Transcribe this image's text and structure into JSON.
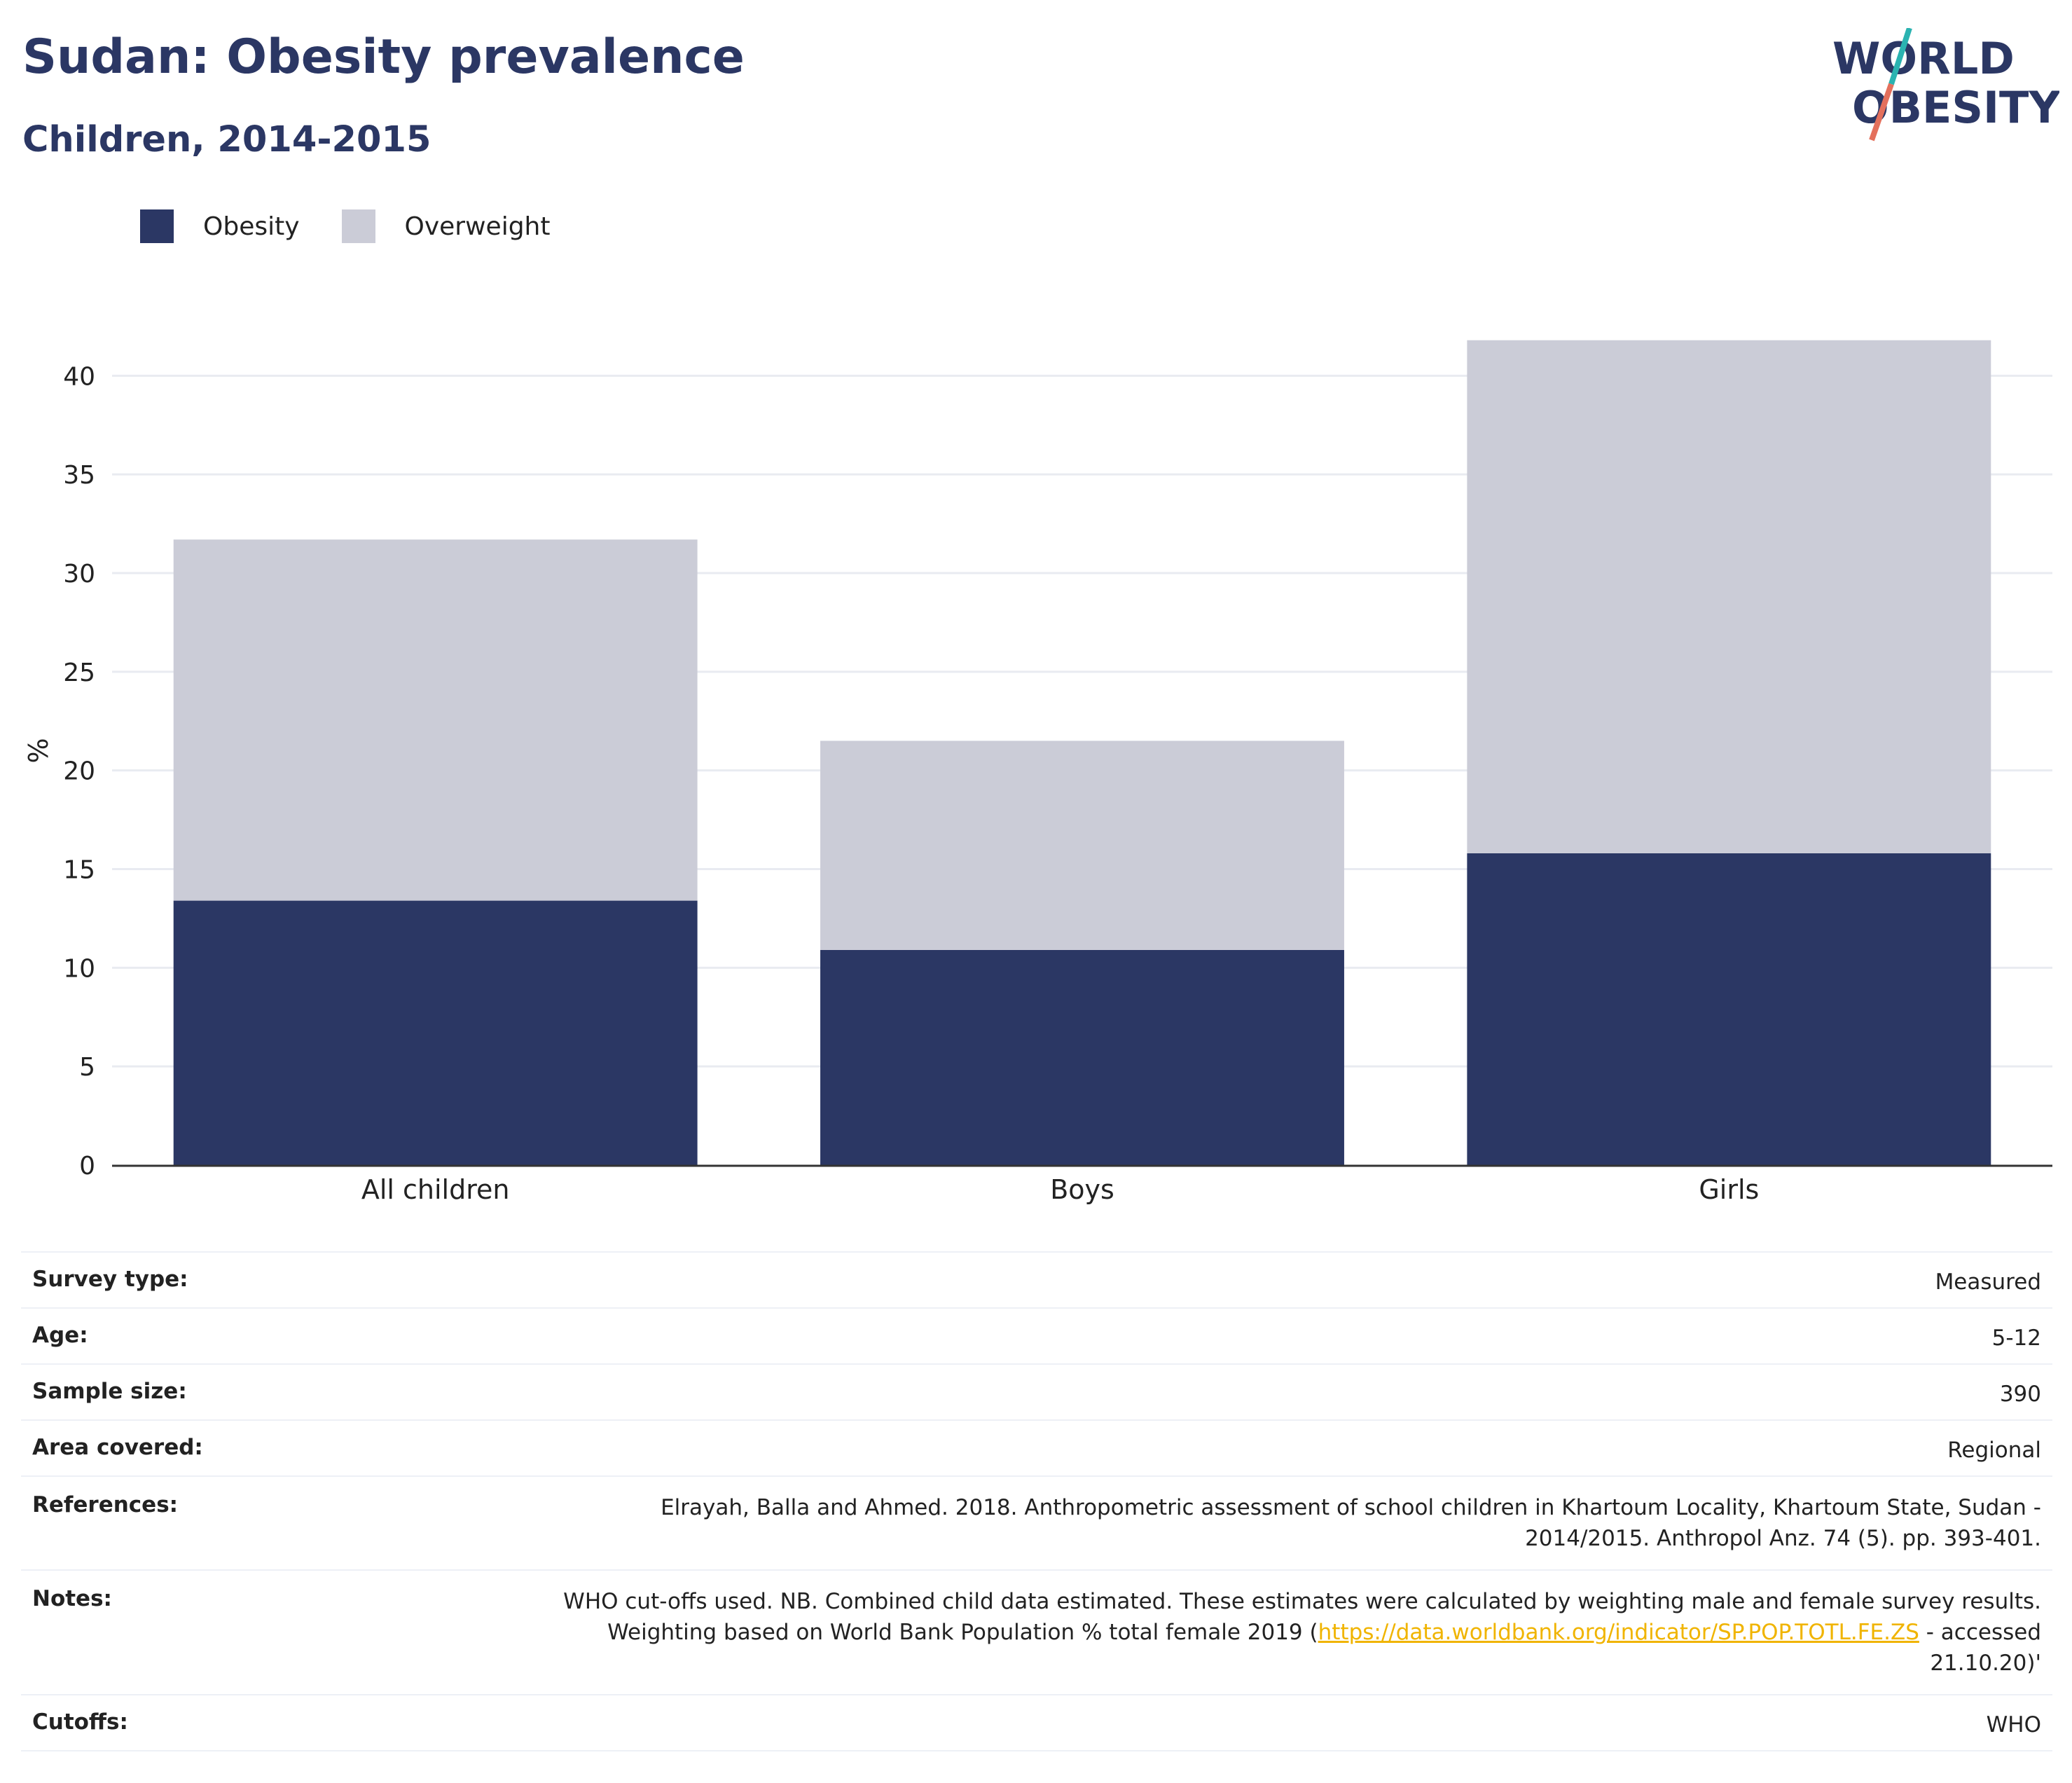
{
  "header": {
    "title": "Sudan: Obesity prevalence",
    "subtitle": "Children, 2014-2015"
  },
  "logo": {
    "line1": "WORLD",
    "line2": "OBESITY",
    "colors": {
      "text": "#2b3764",
      "slash_top": "#2bb3b1",
      "slash_bottom": "#e4705c"
    }
  },
  "legend": {
    "items": [
      {
        "label": "Obesity",
        "color": "#2b3764"
      },
      {
        "label": "Overweight",
        "color": "#cbccd7"
      }
    ]
  },
  "chart_data": {
    "type": "bar",
    "stacked": true,
    "categories": [
      "All children",
      "Boys",
      "Girls"
    ],
    "series": [
      {
        "name": "Obesity",
        "values": [
          13.4,
          10.9,
          15.8
        ],
        "color": "#2b3764"
      },
      {
        "name": "Overweight",
        "values": [
          18.3,
          10.6,
          26.0
        ],
        "color": "#cbccd7"
      }
    ],
    "ylabel": "%",
    "ylim": [
      0,
      42
    ],
    "yticks": [
      0,
      5,
      10,
      15,
      20,
      25,
      30,
      35,
      40
    ],
    "grid": true,
    "legend_position": "top-left"
  },
  "info": {
    "rows": [
      {
        "key": "Survey type:",
        "value": "Measured"
      },
      {
        "key": "Age:",
        "value": "5-12"
      },
      {
        "key": "Sample size:",
        "value": "390"
      },
      {
        "key": "Area covered:",
        "value": "Regional"
      },
      {
        "key": "References:",
        "line1": "Elrayah, Balla and Ahmed. 2018. Anthropometric assessment of school children in Khartoum Locality, Khartoum State, Sudan -",
        "line2": "2014/2015. Anthropol Anz. 74 (5). pp. 393-401."
      },
      {
        "key": "Notes:",
        "line1": "WHO cut-offs used. NB. Combined child data estimated. These estimates were calculated by weighting male and female survey results.",
        "line2_pre": "Weighting based on World Bank Population % total female 2019 (",
        "link": "https://data.worldbank.org/indicator/SP.POP.TOTL.FE.ZS",
        "line2_post": " - accessed",
        "line3": "21.10.20)'"
      },
      {
        "key": "Cutoffs:",
        "value": "WHO"
      }
    ]
  }
}
